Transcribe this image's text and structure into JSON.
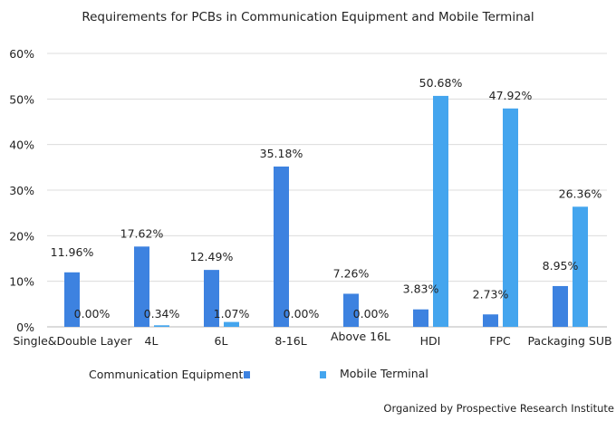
{
  "chart_data": {
    "type": "bar",
    "title": "Requirements for PCBs in Communication Equipment and Mobile Terminal",
    "categories": [
      "Single&Double Layer",
      "4L",
      "6L",
      "8-16L",
      "Above 16L",
      "HDI",
      "FPC",
      "Packaging SUB"
    ],
    "series": [
      {
        "name": "Communication Equipment",
        "values": [
          11.96,
          17.62,
          12.49,
          35.18,
          7.26,
          3.83,
          2.73,
          8.95
        ],
        "labels": [
          "11.96%",
          "17.62%",
          "12.49%",
          "35.18%",
          "7.26%",
          "3.83%",
          "2.73%",
          "8.95%"
        ],
        "color": "#3d82e0"
      },
      {
        "name": "Mobile Terminal",
        "values": [
          0.0,
          0.34,
          1.07,
          0.0,
          0.0,
          50.68,
          47.92,
          26.36
        ],
        "labels": [
          "0.00%",
          "0.34%",
          "1.07%",
          "0.00%",
          "0.00%",
          "50.68%",
          "47.92%",
          "26.36%"
        ],
        "color": "#44a5ee"
      }
    ],
    "yticks": [
      "0%",
      "10%",
      "20%",
      "30%",
      "40%",
      "50%",
      "60%"
    ],
    "ylim": [
      0,
      60
    ],
    "grid": true,
    "legend_placement": "bottom",
    "source": "Organized by Prospective Research Institute"
  }
}
